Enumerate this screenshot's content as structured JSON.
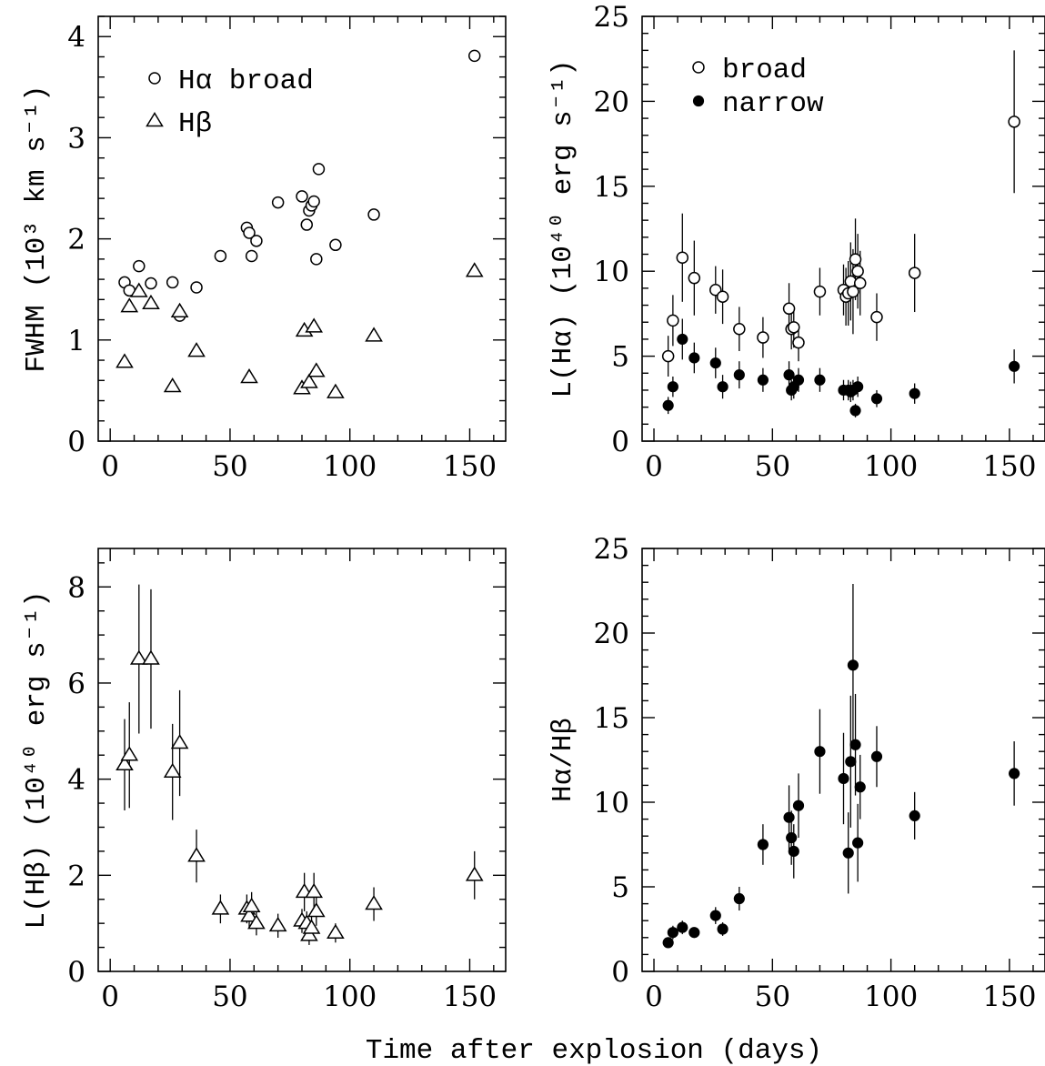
{
  "figure": {
    "xlabel": "Time after explosion (days)"
  },
  "chart_data": [
    {
      "type": "scatter",
      "panel": "top-left",
      "ylabel": "FWHM (10³ km s⁻¹)",
      "xlim": [
        -5,
        165
      ],
      "ylim": [
        0,
        4.2
      ],
      "xticks": [
        0,
        50,
        100,
        150
      ],
      "yticks": [
        0,
        1,
        2,
        3,
        4
      ],
      "legend": {
        "placement": "top-left",
        "entries": [
          "Hα broad",
          "Hβ"
        ]
      },
      "series": [
        {
          "name": "Hα broad",
          "marker": "circle-open",
          "x": [
            6,
            8,
            12,
            17,
            26,
            29,
            36,
            46,
            57,
            58,
            59,
            61,
            70,
            80,
            82,
            83,
            84,
            85,
            86,
            87,
            94,
            110,
            152
          ],
          "y": [
            1.57,
            1.49,
            1.73,
            1.56,
            1.57,
            1.24,
            1.52,
            1.83,
            2.11,
            2.06,
            1.83,
            1.98,
            2.36,
            2.42,
            2.14,
            2.28,
            2.33,
            2.37,
            1.8,
            2.69,
            1.94,
            2.24,
            3.81
          ]
        },
        {
          "name": "Hβ",
          "marker": "triangle-open",
          "x": [
            6,
            8,
            12,
            17,
            26,
            29,
            36,
            58,
            80,
            81,
            83,
            85,
            86,
            94,
            110,
            152
          ],
          "y": [
            0.78,
            1.33,
            1.48,
            1.36,
            0.54,
            1.28,
            0.89,
            0.63,
            0.52,
            1.09,
            0.58,
            1.13,
            0.69,
            0.48,
            1.04,
            1.68
          ]
        }
      ]
    },
    {
      "type": "scatter",
      "panel": "top-right",
      "ylabel": "L(Hα) (10⁴⁰ erg s⁻¹)",
      "xlim": [
        -5,
        165
      ],
      "ylim": [
        0,
        25
      ],
      "xticks": [
        0,
        50,
        100,
        150
      ],
      "yticks": [
        0,
        5,
        10,
        15,
        20,
        25
      ],
      "legend": {
        "placement": "top-left",
        "entries": [
          "broad",
          "narrow"
        ]
      },
      "series": [
        {
          "name": "broad",
          "marker": "circle-open",
          "x": [
            6,
            8,
            12,
            17,
            26,
            29,
            36,
            46,
            57,
            58,
            59,
            61,
            70,
            80,
            81,
            82,
            83,
            84,
            85,
            86,
            87,
            94,
            110,
            152
          ],
          "y": [
            5.0,
            7.1,
            10.8,
            9.6,
            8.9,
            8.5,
            6.6,
            6.1,
            7.8,
            6.6,
            6.7,
            5.8,
            8.8,
            8.9,
            8.5,
            8.7,
            9.4,
            8.8,
            10.7,
            10.0,
            9.3,
            7.3,
            9.9,
            18.8
          ],
          "err": [
            1.2,
            1.5,
            2.6,
            2.2,
            1.4,
            1.6,
            1.3,
            1.2,
            1.5,
            1.2,
            1.2,
            1.1,
            1.4,
            1.5,
            1.7,
            1.9,
            2.3,
            2.5,
            2.4,
            2.2,
            1.9,
            1.4,
            2.3,
            4.2
          ]
        },
        {
          "name": "narrow",
          "marker": "circle-filled",
          "x": [
            6,
            8,
            12,
            17,
            26,
            29,
            36,
            46,
            57,
            58,
            59,
            61,
            70,
            80,
            82,
            83,
            84,
            85,
            86,
            94,
            110,
            152
          ],
          "y": [
            2.1,
            3.2,
            6.0,
            4.9,
            4.6,
            3.2,
            3.9,
            3.6,
            3.9,
            3.0,
            3.2,
            3.6,
            3.6,
            3.0,
            3.0,
            2.9,
            3.0,
            1.8,
            3.2,
            2.5,
            2.8,
            4.4
          ],
          "err": [
            0.5,
            0.6,
            1.2,
            0.9,
            0.9,
            0.7,
            0.8,
            0.7,
            0.8,
            0.6,
            0.7,
            0.7,
            0.7,
            0.6,
            0.6,
            0.6,
            0.6,
            0.4,
            0.6,
            0.5,
            0.6,
            1.0
          ]
        }
      ]
    },
    {
      "type": "scatter",
      "panel": "bottom-left",
      "ylabel": "L(Hβ) (10⁴⁰ erg s⁻¹)",
      "xlim": [
        -5,
        165
      ],
      "ylim": [
        0,
        8.8
      ],
      "xticks": [
        0,
        50,
        100,
        150
      ],
      "yticks": [
        0,
        2,
        4,
        6,
        8
      ],
      "series": [
        {
          "marker": "triangle-open",
          "x": [
            6,
            8,
            12,
            17,
            26,
            29,
            36,
            46,
            57,
            58,
            59,
            61,
            70,
            80,
            81,
            82,
            83,
            84,
            85,
            86,
            94,
            110,
            152
          ],
          "y": [
            4.3,
            4.5,
            6.5,
            6.5,
            4.15,
            4.75,
            2.4,
            1.3,
            1.3,
            1.15,
            1.35,
            1.0,
            0.95,
            1.05,
            1.65,
            1.0,
            0.75,
            0.9,
            1.65,
            1.25,
            0.8,
            1.4,
            2.0
          ],
          "err": [
            0.95,
            1.1,
            1.55,
            1.45,
            1.0,
            1.1,
            0.55,
            0.3,
            0.3,
            0.25,
            0.3,
            0.25,
            0.25,
            0.25,
            0.4,
            0.25,
            0.2,
            0.25,
            0.4,
            0.3,
            0.2,
            0.35,
            0.5
          ]
        }
      ]
    },
    {
      "type": "scatter",
      "panel": "bottom-right",
      "ylabel": "Hα/Hβ",
      "xlim": [
        -5,
        165
      ],
      "ylim": [
        0,
        25
      ],
      "xticks": [
        0,
        50,
        100,
        150
      ],
      "yticks": [
        0,
        5,
        10,
        15,
        20,
        25
      ],
      "series": [
        {
          "marker": "circle-filled",
          "x": [
            6,
            8,
            12,
            17,
            26,
            29,
            36,
            46,
            57,
            58,
            59,
            61,
            70,
            80,
            82,
            83,
            84,
            85,
            86,
            87,
            94,
            110,
            152
          ],
          "y": [
            1.7,
            2.3,
            2.6,
            2.3,
            3.3,
            2.5,
            4.3,
            7.5,
            9.1,
            7.9,
            7.1,
            9.8,
            13.0,
            11.4,
            7.0,
            12.4,
            18.1,
            13.4,
            7.6,
            10.9,
            12.7,
            9.2,
            11.7
          ],
          "err": [
            0.3,
            0.4,
            0.4,
            0.3,
            0.5,
            0.4,
            0.7,
            1.2,
            1.9,
            1.6,
            1.6,
            1.9,
            2.5,
            2.7,
            2.4,
            3.9,
            4.8,
            3.0,
            2.3,
            1.9,
            1.8,
            1.4,
            1.9
          ]
        }
      ]
    }
  ]
}
